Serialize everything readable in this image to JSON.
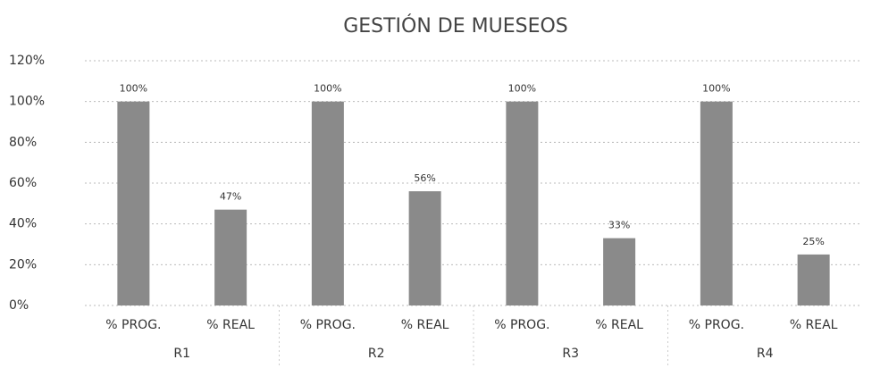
{
  "chart_data": {
    "type": "bar",
    "title": "GESTIÓN DE MUESEOS",
    "categories": [
      "% PROG.",
      "% REAL",
      "% PROG.",
      "% REAL",
      "% PROG.",
      "% REAL",
      "% PROG.",
      "% REAL"
    ],
    "groups": [
      "R1",
      "R2",
      "R3",
      "R4"
    ],
    "values": [
      100,
      47,
      100,
      56,
      100,
      33,
      100,
      25
    ],
    "value_labels": [
      "100%",
      "47%",
      "100%",
      "56%",
      "100%",
      "33%",
      "100%",
      "25%"
    ],
    "color": "#8a8a8a",
    "ylim": [
      0,
      120
    ],
    "yticks": [
      {
        "value": 0,
        "label": "0%"
      },
      {
        "value": 20,
        "label": "20%"
      },
      {
        "value": 40,
        "label": "40%"
      },
      {
        "value": 60,
        "label": "60%"
      },
      {
        "value": 80,
        "label": "80%"
      },
      {
        "value": 100,
        "label": "100%"
      },
      {
        "value": 120,
        "label": "120%"
      }
    ],
    "grid": true
  }
}
